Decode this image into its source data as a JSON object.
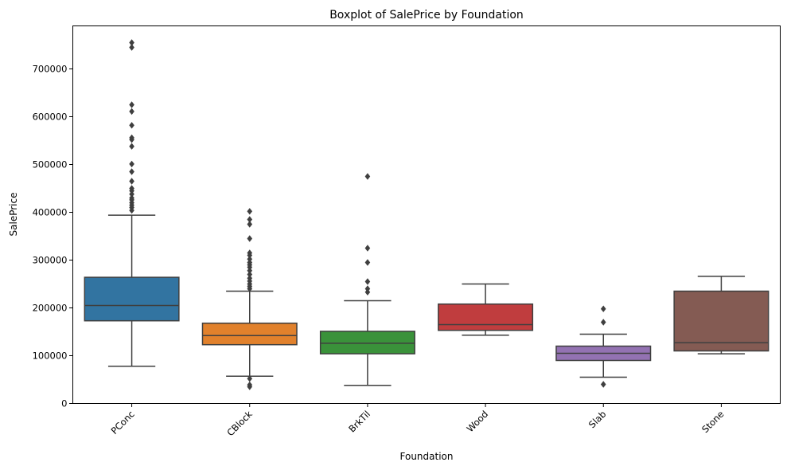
{
  "chart_data": {
    "type": "boxplot",
    "title": "Boxplot of SalePrice by Foundation",
    "xlabel": "Foundation",
    "ylabel": "SalePrice",
    "ylim": [
      0,
      790000
    ],
    "yticks": [
      0,
      100000,
      200000,
      300000,
      400000,
      500000,
      600000,
      700000
    ],
    "ytick_labels": [
      "0",
      "100000",
      "200000",
      "300000",
      "400000",
      "500000",
      "600000",
      "700000"
    ],
    "grid": false,
    "legend": "none",
    "categories": [
      "PConc",
      "CBlock",
      "BrkTil",
      "Wood",
      "Slab",
      "Stone"
    ],
    "colors": [
      "#3274a1",
      "#e1812c",
      "#3a923a",
      "#c03d3e",
      "#9372b2",
      "#845b53"
    ],
    "boxes": [
      {
        "category": "PConc",
        "whisker_low": 78000,
        "q1": 173000,
        "median": 205000,
        "q3": 264000,
        "whisker_high": 394000,
        "outliers": [
          404000,
          410000,
          415000,
          420000,
          426000,
          430000,
          438000,
          445000,
          450000,
          465000,
          485000,
          501000,
          538000,
          552000,
          556000,
          582000,
          611000,
          625000,
          745000,
          755000
        ]
      },
      {
        "category": "CBlock",
        "whisker_low": 57000,
        "q1": 123000,
        "median": 142000,
        "q3": 168000,
        "whisker_high": 235000,
        "outliers": [
          35000,
          39000,
          52000,
          240000,
          245000,
          250000,
          256000,
          262000,
          270000,
          278000,
          285000,
          290000,
          295000,
          302000,
          310000,
          315000,
          345000,
          375000,
          385000,
          402000
        ]
      },
      {
        "category": "BrkTil",
        "whisker_low": 38000,
        "q1": 104000,
        "median": 126000,
        "q3": 151000,
        "whisker_high": 215000,
        "outliers": [
          233000,
          240000,
          255000,
          295000,
          325000,
          475000
        ]
      },
      {
        "category": "Wood",
        "whisker_low": 143000,
        "q1": 153000,
        "median": 165000,
        "q3": 208000,
        "whisker_high": 250000,
        "outliers": []
      },
      {
        "category": "Slab",
        "whisker_low": 55000,
        "q1": 90000,
        "median": 105000,
        "q3": 120000,
        "whisker_high": 145000,
        "outliers": [
          40000,
          170000,
          198000
        ]
      },
      {
        "category": "Stone",
        "whisker_low": 104000,
        "q1": 110000,
        "median": 127000,
        "q3": 235000,
        "whisker_high": 266000,
        "outliers": []
      }
    ]
  }
}
